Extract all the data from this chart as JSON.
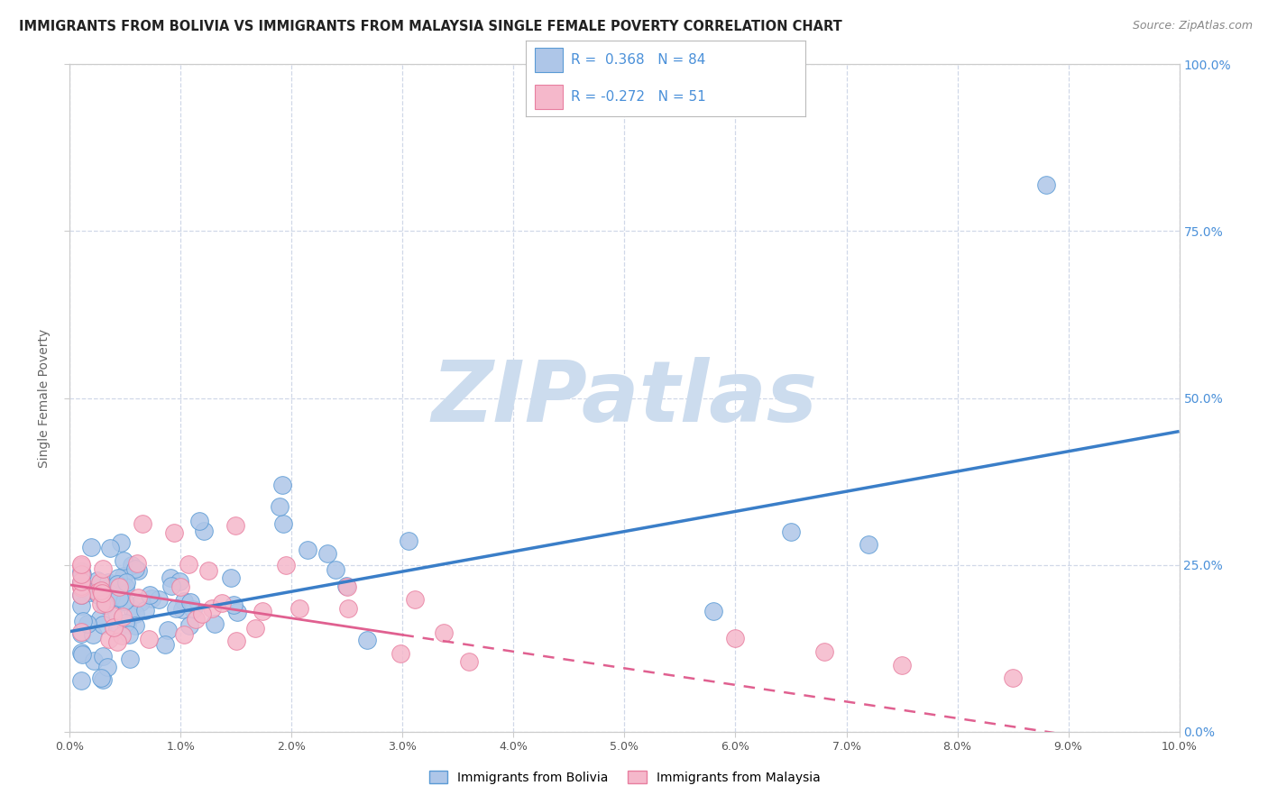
{
  "title": "IMMIGRANTS FROM BOLIVIA VS IMMIGRANTS FROM MALAYSIA SINGLE FEMALE POVERTY CORRELATION CHART",
  "source": "Source: ZipAtlas.com",
  "ylabel": "Single Female Poverty",
  "legend_bolivia": "Immigrants from Bolivia",
  "legend_malaysia": "Immigrants from Malaysia",
  "R_bolivia": 0.368,
  "N_bolivia": 84,
  "R_malaysia": -0.272,
  "N_malaysia": 51,
  "bolivia_color": "#aec6e8",
  "malaysia_color": "#f5b8cb",
  "bolivia_edge_color": "#5b9bd5",
  "malaysia_edge_color": "#e87fa0",
  "bolivia_line_color": "#3a7ec8",
  "malaysia_line_color": "#e06090",
  "watermark_color": "#ccdcee",
  "xlim": [
    0.0,
    0.1
  ],
  "ylim": [
    0.0,
    1.0
  ],
  "grid_color": "#d0d8e8",
  "tick_color": "#4a90d9",
  "ylabel_color": "#666666",
  "title_color": "#222222",
  "source_color": "#888888"
}
